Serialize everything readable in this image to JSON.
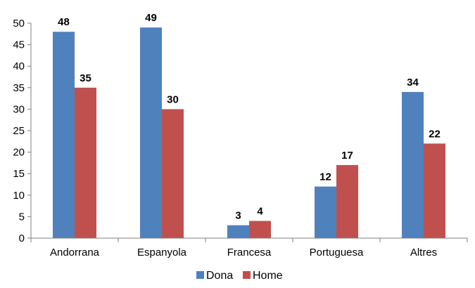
{
  "chart_data": {
    "type": "bar",
    "categories": [
      "Andorrana",
      "Espanyola",
      "Francesa",
      "Portuguesa",
      "Altres"
    ],
    "series": [
      {
        "name": "Dona",
        "values": [
          48,
          49,
          3,
          12,
          34
        ],
        "color": "#4F81BD"
      },
      {
        "name": "Home",
        "values": [
          35,
          30,
          4,
          17,
          22
        ],
        "color": "#C0504D"
      }
    ],
    "yticks": [
      "0",
      "5",
      "10",
      "15",
      "20",
      "25",
      "30",
      "35",
      "40",
      "45",
      "50"
    ],
    "ylim": [
      0,
      50
    ],
    "grid": false,
    "legend": "bottom",
    "data_labels": true
  }
}
